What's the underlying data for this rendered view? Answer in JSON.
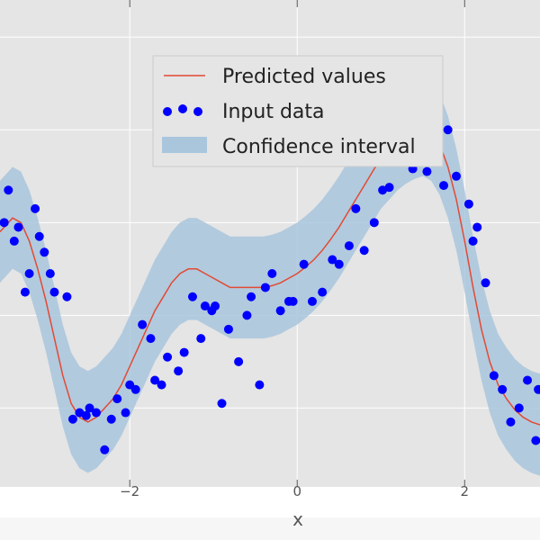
{
  "chart_data": {
    "type": "scatter",
    "title": "",
    "xlabel": "x",
    "ylabel": "",
    "xlim": [
      -3.55,
      2.9
    ],
    "ylim": [
      -2.35,
      2.9
    ],
    "x_ticks": [
      -2,
      0,
      2
    ],
    "x_tick_labels": [
      "−2",
      "0",
      "2"
    ],
    "y_grid_values": [
      -1.5,
      -0.5,
      0.5,
      1.5,
      2.5
    ],
    "grid": true,
    "background_color": "#e5e5e5",
    "legend_position": "top-center",
    "series": [
      {
        "name": "Predicted values",
        "kind": "line",
        "color": "#e24a33",
        "x": [
          -3.55,
          -3.4,
          -3.3,
          -3.2,
          -3.1,
          -3.0,
          -2.9,
          -2.8,
          -2.7,
          -2.6,
          -2.5,
          -2.4,
          -2.3,
          -2.2,
          -2.1,
          -2.0,
          -1.9,
          -1.8,
          -1.7,
          -1.6,
          -1.5,
          -1.4,
          -1.3,
          -1.2,
          -1.1,
          -1.0,
          -0.9,
          -0.8,
          -0.7,
          -0.6,
          -0.5,
          -0.4,
          -0.3,
          -0.2,
          -0.1,
          0.0,
          0.1,
          0.2,
          0.3,
          0.4,
          0.5,
          0.6,
          0.7,
          0.8,
          0.9,
          1.0,
          1.1,
          1.2,
          1.3,
          1.4,
          1.5,
          1.6,
          1.7,
          1.8,
          1.9,
          2.0,
          2.1,
          2.2,
          2.3,
          2.4,
          2.5,
          2.6,
          2.7,
          2.8,
          2.9
        ],
        "y": [
          0.4,
          0.55,
          0.5,
          0.3,
          0.0,
          -0.35,
          -0.75,
          -1.15,
          -1.45,
          -1.6,
          -1.65,
          -1.6,
          -1.5,
          -1.4,
          -1.25,
          -1.05,
          -0.85,
          -0.65,
          -0.45,
          -0.3,
          -0.15,
          -0.05,
          0.0,
          0.0,
          -0.05,
          -0.1,
          -0.15,
          -0.2,
          -0.2,
          -0.2,
          -0.2,
          -0.2,
          -0.18,
          -0.15,
          -0.1,
          -0.05,
          0.02,
          0.1,
          0.2,
          0.32,
          0.45,
          0.6,
          0.75,
          0.9,
          1.05,
          1.2,
          1.3,
          1.4,
          1.47,
          1.52,
          1.55,
          1.5,
          1.35,
          1.1,
          0.75,
          0.3,
          -0.2,
          -0.65,
          -1.0,
          -1.25,
          -1.4,
          -1.52,
          -1.6,
          -1.65,
          -1.68
        ]
      },
      {
        "name": "Input data",
        "kind": "points",
        "color": "#0000ff",
        "x": [
          -3.5,
          -3.45,
          -3.38,
          -3.33,
          -3.25,
          -3.2,
          -3.13,
          -3.08,
          -3.02,
          -2.95,
          -2.9,
          -2.75,
          -2.68,
          -2.6,
          -2.52,
          -2.48,
          -2.4,
          -2.3,
          -2.22,
          -2.15,
          -2.05,
          -2.0,
          -1.93,
          -1.85,
          -1.75,
          -1.7,
          -1.62,
          -1.55,
          -1.42,
          -1.35,
          -1.25,
          -1.15,
          -1.1,
          -1.02,
          -0.98,
          -0.9,
          -0.82,
          -0.7,
          -0.6,
          -0.55,
          -0.45,
          -0.38,
          -0.3,
          -0.2,
          -0.1,
          -0.05,
          0.08,
          0.18,
          0.3,
          0.42,
          0.5,
          0.62,
          0.7,
          0.8,
          0.92,
          1.02,
          1.1,
          1.22,
          1.28,
          1.38,
          1.45,
          1.55,
          1.65,
          1.75,
          1.8,
          1.9,
          2.05,
          2.1,
          2.15,
          2.25,
          2.35,
          2.45,
          2.55,
          2.65,
          2.75,
          2.85,
          2.88
        ],
        "y": [
          0.5,
          0.85,
          0.3,
          0.45,
          -0.25,
          -0.05,
          0.65,
          0.35,
          0.18,
          -0.05,
          -0.25,
          -0.3,
          -1.62,
          -1.55,
          -1.58,
          -1.5,
          -1.55,
          -1.95,
          -1.62,
          -1.4,
          -1.55,
          -1.25,
          -1.3,
          -0.6,
          -0.75,
          -1.2,
          -1.25,
          -0.95,
          -1.1,
          -0.9,
          -0.3,
          -0.75,
          -0.4,
          -0.45,
          -0.4,
          -1.45,
          -0.65,
          -1.0,
          -0.5,
          -0.3,
          -1.25,
          -0.2,
          -0.05,
          -0.45,
          -0.35,
          -0.35,
          0.05,
          -0.35,
          -0.25,
          0.1,
          0.05,
          0.25,
          0.65,
          0.2,
          0.5,
          0.85,
          0.88,
          1.2,
          1.5,
          1.08,
          1.4,
          1.05,
          1.35,
          0.9,
          1.5,
          1.0,
          0.7,
          0.3,
          0.45,
          -0.15,
          -1.15,
          -1.3,
          -1.65,
          -1.5,
          -1.2,
          -1.85,
          -1.3
        ]
      },
      {
        "name": "Confidence interval",
        "kind": "band",
        "color": "#a9c6dd",
        "half_width": 0.55
      }
    ]
  }
}
